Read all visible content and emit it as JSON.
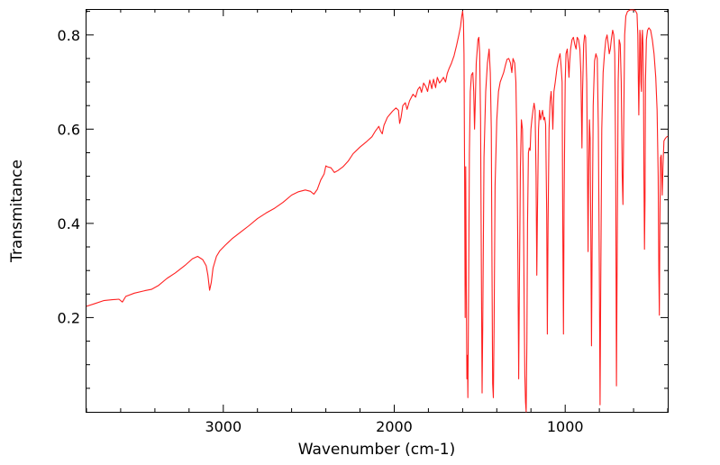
{
  "chart_data": {
    "type": "line",
    "xlabel": "Wavenumber (cm-1)",
    "ylabel": "Transmitance",
    "xlim": [
      3800,
      400
    ],
    "ylim": [
      0.0,
      0.855
    ],
    "x_reversed": true,
    "x_ticks": [
      3000,
      2000,
      1000
    ],
    "x_tick_labels": [
      "3000",
      "2000",
      "1000"
    ],
    "y_ticks": [
      0.2,
      0.4,
      0.6,
      0.8
    ],
    "y_tick_labels": [
      "0.2",
      "0.4",
      "0.6",
      "0.8"
    ],
    "grid": false,
    "series": [
      {
        "color": "#ff2020",
        "points": [
          [
            3800,
            0.224
          ],
          [
            3750,
            0.23
          ],
          [
            3700,
            0.236
          ],
          [
            3650,
            0.238
          ],
          [
            3610,
            0.239
          ],
          [
            3590,
            0.233
          ],
          [
            3570,
            0.245
          ],
          [
            3520,
            0.252
          ],
          [
            3460,
            0.257
          ],
          [
            3420,
            0.26
          ],
          [
            3380,
            0.268
          ],
          [
            3330,
            0.283
          ],
          [
            3280,
            0.295
          ],
          [
            3220,
            0.312
          ],
          [
            3180,
            0.325
          ],
          [
            3150,
            0.33
          ],
          [
            3120,
            0.323
          ],
          [
            3100,
            0.31
          ],
          [
            3090,
            0.29
          ],
          [
            3080,
            0.258
          ],
          [
            3070,
            0.275
          ],
          [
            3060,
            0.305
          ],
          [
            3040,
            0.33
          ],
          [
            3020,
            0.342
          ],
          [
            2990,
            0.353
          ],
          [
            2950,
            0.367
          ],
          [
            2900,
            0.381
          ],
          [
            2850,
            0.395
          ],
          [
            2800,
            0.41
          ],
          [
            2750,
            0.422
          ],
          [
            2700,
            0.432
          ],
          [
            2650,
            0.445
          ],
          [
            2600,
            0.46
          ],
          [
            2560,
            0.467
          ],
          [
            2520,
            0.471
          ],
          [
            2490,
            0.468
          ],
          [
            2470,
            0.462
          ],
          [
            2450,
            0.472
          ],
          [
            2430,
            0.492
          ],
          [
            2410,
            0.505
          ],
          [
            2400,
            0.522
          ],
          [
            2390,
            0.52
          ],
          [
            2370,
            0.518
          ],
          [
            2350,
            0.508
          ],
          [
            2330,
            0.512
          ],
          [
            2300,
            0.52
          ],
          [
            2270,
            0.532
          ],
          [
            2240,
            0.548
          ],
          [
            2200,
            0.562
          ],
          [
            2160,
            0.574
          ],
          [
            2130,
            0.584
          ],
          [
            2110,
            0.596
          ],
          [
            2090,
            0.606
          ],
          [
            2080,
            0.596
          ],
          [
            2070,
            0.59
          ],
          [
            2060,
            0.608
          ],
          [
            2040,
            0.625
          ],
          [
            2010,
            0.638
          ],
          [
            1990,
            0.645
          ],
          [
            1975,
            0.64
          ],
          [
            1968,
            0.612
          ],
          [
            1960,
            0.625
          ],
          [
            1950,
            0.65
          ],
          [
            1935,
            0.656
          ],
          [
            1925,
            0.642
          ],
          [
            1910,
            0.66
          ],
          [
            1890,
            0.674
          ],
          [
            1875,
            0.668
          ],
          [
            1862,
            0.684
          ],
          [
            1850,
            0.69
          ],
          [
            1840,
            0.678
          ],
          [
            1828,
            0.698
          ],
          [
            1815,
            0.69
          ],
          [
            1805,
            0.68
          ],
          [
            1792,
            0.704
          ],
          [
            1780,
            0.686
          ],
          [
            1770,
            0.706
          ],
          [
            1758,
            0.688
          ],
          [
            1748,
            0.71
          ],
          [
            1735,
            0.698
          ],
          [
            1722,
            0.704
          ],
          [
            1712,
            0.71
          ],
          [
            1700,
            0.7
          ],
          [
            1690,
            0.718
          ],
          [
            1680,
            0.728
          ],
          [
            1665,
            0.74
          ],
          [
            1650,
            0.756
          ],
          [
            1635,
            0.778
          ],
          [
            1622,
            0.8
          ],
          [
            1612,
            0.818
          ],
          [
            1605,
            0.84
          ],
          [
            1600,
            0.85
          ],
          [
            1595,
            0.83
          ],
          [
            1592,
            0.76
          ],
          [
            1588,
            0.5
          ],
          [
            1585,
            0.2
          ],
          [
            1582,
            0.52
          ],
          [
            1578,
            0.25
          ],
          [
            1575,
            0.07
          ],
          [
            1572,
            0.12
          ],
          [
            1569,
            0.03
          ],
          [
            1565,
            0.25
          ],
          [
            1560,
            0.55
          ],
          [
            1555,
            0.68
          ],
          [
            1548,
            0.715
          ],
          [
            1540,
            0.72
          ],
          [
            1535,
            0.68
          ],
          [
            1530,
            0.6
          ],
          [
            1527,
            0.64
          ],
          [
            1520,
            0.74
          ],
          [
            1510,
            0.79
          ],
          [
            1505,
            0.795
          ],
          [
            1500,
            0.76
          ],
          [
            1495,
            0.62
          ],
          [
            1490,
            0.3
          ],
          [
            1486,
            0.04
          ],
          [
            1482,
            0.18
          ],
          [
            1475,
            0.54
          ],
          [
            1465,
            0.68
          ],
          [
            1455,
            0.74
          ],
          [
            1445,
            0.77
          ],
          [
            1438,
            0.72
          ],
          [
            1432,
            0.6
          ],
          [
            1428,
            0.3
          ],
          [
            1424,
            0.06
          ],
          [
            1420,
            0.03
          ],
          [
            1416,
            0.18
          ],
          [
            1410,
            0.48
          ],
          [
            1400,
            0.62
          ],
          [
            1390,
            0.68
          ],
          [
            1380,
            0.7
          ],
          [
            1370,
            0.71
          ],
          [
            1360,
            0.72
          ],
          [
            1350,
            0.735
          ],
          [
            1340,
            0.748
          ],
          [
            1330,
            0.75
          ],
          [
            1320,
            0.74
          ],
          [
            1312,
            0.72
          ],
          [
            1305,
            0.75
          ],
          [
            1295,
            0.74
          ],
          [
            1288,
            0.7
          ],
          [
            1282,
            0.56
          ],
          [
            1276,
            0.3
          ],
          [
            1272,
            0.07
          ],
          [
            1268,
            0.25
          ],
          [
            1262,
            0.52
          ],
          [
            1256,
            0.62
          ],
          [
            1250,
            0.6
          ],
          [
            1245,
            0.48
          ],
          [
            1240,
            0.25
          ],
          [
            1236,
            0.08
          ],
          [
            1232,
            0.02
          ],
          [
            1228,
            0.0
          ],
          [
            1224,
            0.15
          ],
          [
            1220,
            0.4
          ],
          [
            1215,
            0.55
          ],
          [
            1210,
            0.56
          ],
          [
            1205,
            0.555
          ],
          [
            1200,
            0.6
          ],
          [
            1195,
            0.62
          ],
          [
            1188,
            0.64
          ],
          [
            1182,
            0.655
          ],
          [
            1176,
            0.64
          ],
          [
            1170,
            0.5
          ],
          [
            1166,
            0.29
          ],
          [
            1162,
            0.42
          ],
          [
            1156,
            0.6
          ],
          [
            1150,
            0.64
          ],
          [
            1144,
            0.62
          ],
          [
            1138,
            0.63
          ],
          [
            1132,
            0.64
          ],
          [
            1126,
            0.62
          ],
          [
            1120,
            0.625
          ],
          [
            1114,
            0.61
          ],
          [
            1108,
            0.42
          ],
          [
            1104,
            0.165
          ],
          [
            1100,
            0.4
          ],
          [
            1094,
            0.6
          ],
          [
            1088,
            0.66
          ],
          [
            1082,
            0.68
          ],
          [
            1076,
            0.64
          ],
          [
            1072,
            0.6
          ],
          [
            1066,
            0.68
          ],
          [
            1058,
            0.7
          ],
          [
            1048,
            0.73
          ],
          [
            1038,
            0.75
          ],
          [
            1030,
            0.76
          ],
          [
            1024,
            0.735
          ],
          [
            1018,
            0.7
          ],
          [
            1014,
            0.4
          ],
          [
            1010,
            0.165
          ],
          [
            1006,
            0.45
          ],
          [
            1000,
            0.7
          ],
          [
            995,
            0.76
          ],
          [
            988,
            0.77
          ],
          [
            982,
            0.74
          ],
          [
            978,
            0.71
          ],
          [
            974,
            0.74
          ],
          [
            968,
            0.77
          ],
          [
            960,
            0.79
          ],
          [
            952,
            0.795
          ],
          [
            944,
            0.78
          ],
          [
            936,
            0.77
          ],
          [
            930,
            0.795
          ],
          [
            922,
            0.79
          ],
          [
            914,
            0.77
          ],
          [
            908,
            0.72
          ],
          [
            902,
            0.56
          ],
          [
            898,
            0.68
          ],
          [
            892,
            0.78
          ],
          [
            886,
            0.8
          ],
          [
            880,
            0.795
          ],
          [
            874,
            0.7
          ],
          [
            869,
            0.5
          ],
          [
            866,
            0.34
          ],
          [
            863,
            0.5
          ],
          [
            858,
            0.62
          ],
          [
            854,
            0.58
          ],
          [
            850,
            0.4
          ],
          [
            846,
            0.14
          ],
          [
            842,
            0.35
          ],
          [
            836,
            0.65
          ],
          [
            828,
            0.745
          ],
          [
            820,
            0.76
          ],
          [
            812,
            0.75
          ],
          [
            806,
            0.6
          ],
          [
            800,
            0.3
          ],
          [
            796,
            0.015
          ],
          [
            792,
            0.25
          ],
          [
            786,
            0.6
          ],
          [
            778,
            0.72
          ],
          [
            770,
            0.76
          ],
          [
            762,
            0.79
          ],
          [
            755,
            0.8
          ],
          [
            748,
            0.78
          ],
          [
            742,
            0.76
          ],
          [
            736,
            0.77
          ],
          [
            730,
            0.79
          ],
          [
            722,
            0.81
          ],
          [
            716,
            0.8
          ],
          [
            710,
            0.76
          ],
          [
            704,
            0.5
          ],
          [
            700,
            0.055
          ],
          [
            696,
            0.3
          ],
          [
            690,
            0.7
          ],
          [
            684,
            0.79
          ],
          [
            678,
            0.78
          ],
          [
            672,
            0.7
          ],
          [
            666,
            0.5
          ],
          [
            662,
            0.44
          ],
          [
            658,
            0.6
          ],
          [
            652,
            0.8
          ],
          [
            645,
            0.84
          ],
          [
            635,
            0.85
          ],
          [
            620,
            0.853
          ],
          [
            600,
            0.853
          ],
          [
            590,
            0.852
          ],
          [
            580,
            0.845
          ],
          [
            575,
            0.8
          ],
          [
            572,
            0.7
          ],
          [
            569,
            0.63
          ],
          [
            566,
            0.72
          ],
          [
            563,
            0.81
          ],
          [
            560,
            0.8
          ],
          [
            557,
            0.7
          ],
          [
            554,
            0.68
          ],
          [
            551,
            0.79
          ],
          [
            548,
            0.81
          ],
          [
            545,
            0.78
          ],
          [
            542,
            0.7
          ],
          [
            539,
            0.5
          ],
          [
            536,
            0.345
          ],
          [
            533,
            0.45
          ],
          [
            530,
            0.7
          ],
          [
            525,
            0.79
          ],
          [
            518,
            0.81
          ],
          [
            510,
            0.815
          ],
          [
            500,
            0.81
          ],
          [
            490,
            0.79
          ],
          [
            480,
            0.76
          ],
          [
            470,
            0.71
          ],
          [
            462,
            0.64
          ],
          [
            456,
            0.5
          ],
          [
            452,
            0.3
          ],
          [
            449,
            0.205
          ],
          [
            446,
            0.4
          ],
          [
            442,
            0.54
          ],
          [
            438,
            0.545
          ],
          [
            435,
            0.5
          ],
          [
            432,
            0.46
          ],
          [
            428,
            0.52
          ],
          [
            422,
            0.575
          ],
          [
            415,
            0.58
          ],
          [
            408,
            0.583
          ],
          [
            400,
            0.585
          ]
        ]
      }
    ]
  }
}
